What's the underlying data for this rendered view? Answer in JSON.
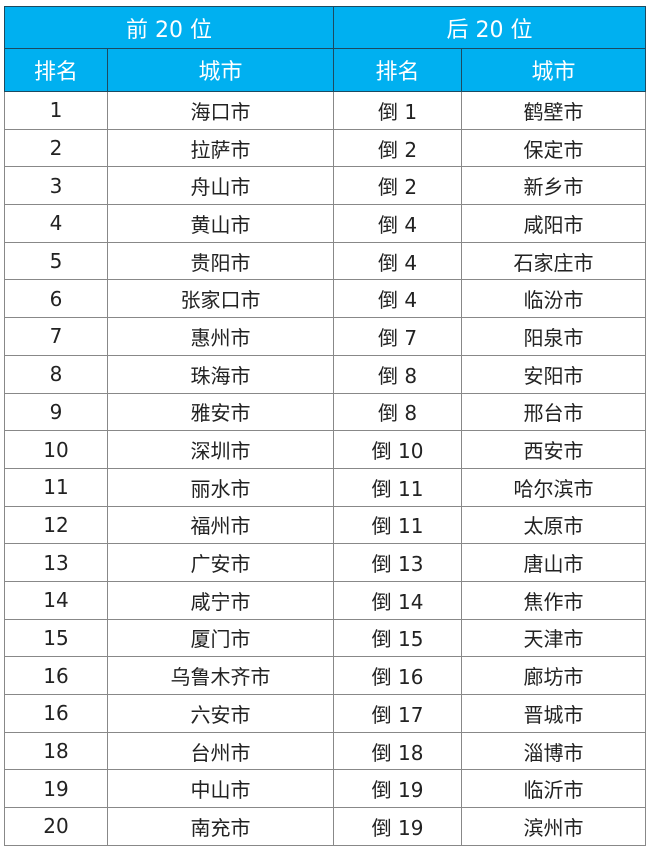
{
  "header": {
    "top": "前 20 位",
    "bottom": "后 20 位",
    "rank": "排名",
    "city": "城市"
  },
  "header_color": "#00b0f0",
  "rows": [
    [
      "1",
      "海口市",
      "倒 1",
      "鹤壁市"
    ],
    [
      "2",
      "拉萨市",
      "倒 2",
      "保定市"
    ],
    [
      "3",
      "舟山市",
      "倒 2",
      "新乡市"
    ],
    [
      "4",
      "黄山市",
      "倒 4",
      "咸阳市"
    ],
    [
      "5",
      "贵阳市",
      "倒 4",
      "石家庄市"
    ],
    [
      "6",
      "张家口市",
      "倒 4",
      "临汾市"
    ],
    [
      "7",
      "惠州市",
      "倒 7",
      "阳泉市"
    ],
    [
      "8",
      "珠海市",
      "倒 8",
      "安阳市"
    ],
    [
      "9",
      "雅安市",
      "倒 8",
      "邢台市"
    ],
    [
      "10",
      "深圳市",
      "倒 10",
      "西安市"
    ],
    [
      "11",
      "丽水市",
      "倒 11",
      "哈尔滨市"
    ],
    [
      "12",
      "福州市",
      "倒 11",
      "太原市"
    ],
    [
      "13",
      "广安市",
      "倒 13",
      "唐山市"
    ],
    [
      "14",
      "咸宁市",
      "倒 14",
      "焦作市"
    ],
    [
      "15",
      "厦门市",
      "倒 15",
      "天津市"
    ],
    [
      "16",
      "乌鲁木齐市",
      "倒 16",
      "廊坊市"
    ],
    [
      "16",
      "六安市",
      "倒 17",
      "晋城市"
    ],
    [
      "18",
      "台州市",
      "倒 18",
      "淄博市"
    ],
    [
      "19",
      "中山市",
      "倒 19",
      "临沂市"
    ],
    [
      "20",
      "南充市",
      "倒 19",
      "滨州市"
    ]
  ]
}
